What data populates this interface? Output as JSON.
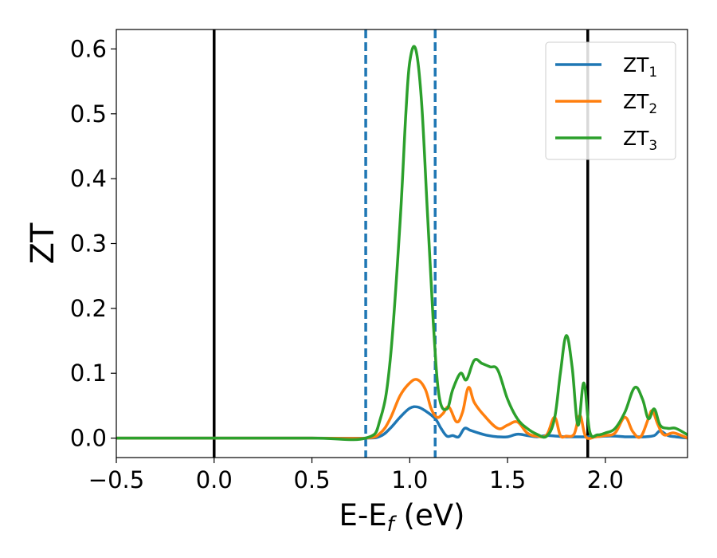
{
  "chart_data": {
    "type": "line",
    "title": "",
    "xlabel": "E-E",
    "xlabel_sub": "f",
    "xlabel_unit": "(eV)",
    "ylabel": "ZT",
    "xlim": [
      -0.5,
      2.42
    ],
    "ylim": [
      -0.03,
      0.63
    ],
    "xticks": [
      -0.5,
      0.0,
      0.5,
      1.0,
      1.5,
      2.0
    ],
    "xtick_labels": [
      "−0.5",
      "0.0",
      "0.5",
      "1.0",
      "1.5",
      "2.0"
    ],
    "yticks": [
      0.0,
      0.1,
      0.2,
      0.3,
      0.4,
      0.5,
      0.6
    ],
    "ytick_labels": [
      "0.0",
      "0.1",
      "0.2",
      "0.3",
      "0.4",
      "0.5",
      "0.6"
    ],
    "grid": false,
    "legend_position": "top-right",
    "vertical_lines": [
      {
        "x": 0.0,
        "style": "solid",
        "color": "#000000"
      },
      {
        "x": 1.91,
        "style": "solid",
        "color": "#000000"
      },
      {
        "x": 0.775,
        "style": "dashed",
        "color": "#1f77b4"
      },
      {
        "x": 1.13,
        "style": "dashed",
        "color": "#1f77b4"
      }
    ],
    "series": [
      {
        "name": "ZT",
        "subscript": "1",
        "color": "#1f77b4",
        "x": [
          -0.5,
          0.0,
          0.5,
          0.775,
          0.85,
          0.9,
          0.95,
          1.0,
          1.04,
          1.08,
          1.13,
          1.16,
          1.19,
          1.22,
          1.25,
          1.28,
          1.31,
          1.35,
          1.4,
          1.45,
          1.5,
          1.55,
          1.6,
          1.65,
          1.7,
          1.75,
          1.8,
          1.85,
          1.9,
          1.95,
          2.0,
          2.05,
          2.1,
          2.15,
          2.2,
          2.25,
          2.28,
          2.32,
          2.36,
          2.42
        ],
        "y": [
          0.0,
          0.0,
          0.0,
          0.0,
          0.003,
          0.015,
          0.032,
          0.046,
          0.048,
          0.042,
          0.03,
          0.015,
          0.003,
          0.004,
          0.002,
          0.015,
          0.012,
          0.008,
          0.004,
          0.002,
          0.002,
          0.006,
          0.004,
          0.002,
          0.004,
          0.003,
          0.002,
          0.002,
          0.002,
          0.002,
          0.003,
          0.003,
          0.002,
          0.002,
          0.002,
          0.004,
          0.011,
          0.004,
          0.002,
          0.0
        ]
      },
      {
        "name": "ZT",
        "subscript": "2",
        "color": "#ff7f0e",
        "x": [
          -0.5,
          0.0,
          0.5,
          0.775,
          0.85,
          0.9,
          0.95,
          1.0,
          1.04,
          1.08,
          1.11,
          1.14,
          1.17,
          1.2,
          1.24,
          1.27,
          1.3,
          1.33,
          1.38,
          1.45,
          1.5,
          1.55,
          1.6,
          1.65,
          1.7,
          1.74,
          1.77,
          1.8,
          1.84,
          1.87,
          1.9,
          1.95,
          2.0,
          2.05,
          2.1,
          2.14,
          2.18,
          2.22,
          2.24,
          2.27,
          2.3,
          2.35,
          2.42
        ],
        "y": [
          0.0,
          0.0,
          0.0,
          0.0,
          0.008,
          0.03,
          0.065,
          0.085,
          0.09,
          0.075,
          0.045,
          0.032,
          0.038,
          0.048,
          0.025,
          0.04,
          0.078,
          0.055,
          0.035,
          0.015,
          0.02,
          0.025,
          0.008,
          0.003,
          0.005,
          0.032,
          0.004,
          0.003,
          0.006,
          0.035,
          0.002,
          0.002,
          0.004,
          0.008,
          0.032,
          0.01,
          0.002,
          0.03,
          0.042,
          0.02,
          0.005,
          0.008,
          0.0
        ]
      },
      {
        "name": "ZT",
        "subscript": "3",
        "color": "#2ca02c",
        "x": [
          -0.5,
          0.0,
          0.5,
          0.775,
          0.85,
          0.9,
          0.95,
          0.98,
          1.0,
          1.03,
          1.06,
          1.09,
          1.12,
          1.15,
          1.19,
          1.22,
          1.26,
          1.29,
          1.33,
          1.37,
          1.41,
          1.45,
          1.5,
          1.55,
          1.6,
          1.65,
          1.7,
          1.74,
          1.77,
          1.8,
          1.83,
          1.86,
          1.89,
          1.92,
          1.96,
          2.0,
          2.05,
          2.1,
          2.15,
          2.19,
          2.22,
          2.25,
          2.28,
          2.32,
          2.36,
          2.42
        ],
        "y": [
          0.0,
          0.0,
          0.0,
          0.0,
          0.03,
          0.12,
          0.33,
          0.5,
          0.58,
          0.6,
          0.52,
          0.35,
          0.18,
          0.065,
          0.045,
          0.075,
          0.1,
          0.09,
          0.12,
          0.115,
          0.11,
          0.105,
          0.06,
          0.03,
          0.015,
          0.006,
          0.003,
          0.03,
          0.1,
          0.158,
          0.11,
          0.02,
          0.085,
          0.01,
          0.005,
          0.008,
          0.015,
          0.04,
          0.078,
          0.06,
          0.03,
          0.045,
          0.02,
          0.015,
          0.015,
          0.005
        ]
      }
    ]
  }
}
